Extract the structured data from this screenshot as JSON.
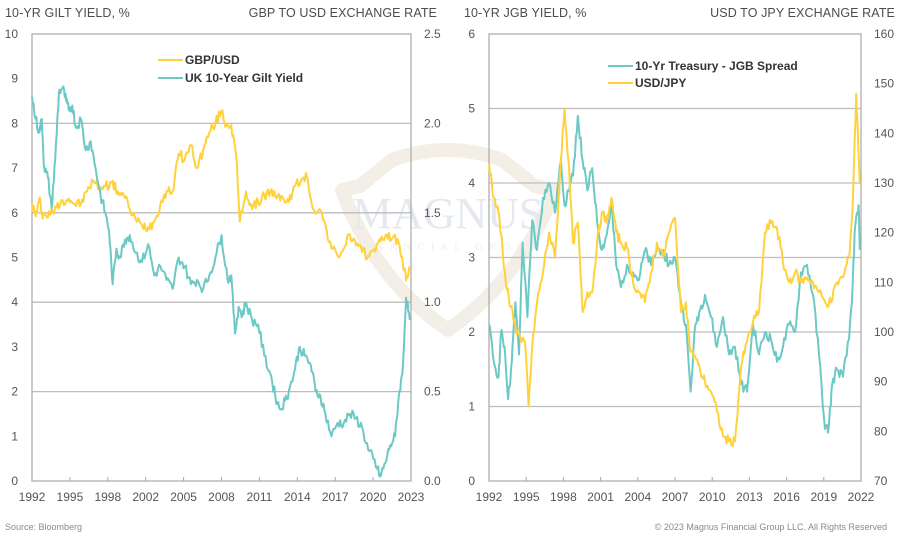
{
  "footer": {
    "source": "Source: Bloomberg",
    "copyright": "© 2023 Magnus Financial Group LLC. All Rights Reserved"
  },
  "watermark": {
    "title": "MAGNUS",
    "subtitle": "FINANCIAL GROUP"
  },
  "colors": {
    "teal": "#6cc9c6",
    "gold": "#ffd23c",
    "grid": "#bdbdbd",
    "axis": "#a8a8a8"
  },
  "chart_data": [
    {
      "type": "line",
      "title": "",
      "ylabel_left": "10-YR GILT YIELD, %",
      "ylabel_right": "GBP TO USD EXCHANGE RATE",
      "xlabel": "",
      "xlim": [
        1992,
        2023
      ],
      "ylim_left": [
        0,
        10
      ],
      "ylim_right": [
        0.0,
        2.5
      ],
      "x_ticks": [
        "1992",
        "1995",
        "1998",
        "2002",
        "2005",
        "2008",
        "2011",
        "2014",
        "2017",
        "2020",
        "2023"
      ],
      "y_ticks_left": [
        "0",
        "1",
        "2",
        "3",
        "4",
        "5",
        "6",
        "7",
        "8",
        "9",
        "10"
      ],
      "y_ticks_right": [
        "0.0",
        "0.5",
        "1.0",
        "1.5",
        "2.0",
        "2.5"
      ],
      "gridlines_left": [
        2,
        4,
        6,
        8
      ],
      "legend_position": "top-center",
      "series": [
        {
          "name": "GBP/USD",
          "axis": "right",
          "color": "#ffd23c",
          "x": [
            1992.0,
            1992.3,
            1992.6,
            1992.8,
            1993.0,
            1993.5,
            1994.0,
            1994.5,
            1995.0,
            1995.5,
            1996.0,
            1996.5,
            1997.0,
            1997.5,
            1998.0,
            1998.5,
            1999.0,
            1999.5,
            2000.0,
            2000.5,
            2001.0,
            2001.5,
            2002.0,
            2002.5,
            2003.0,
            2003.5,
            2004.0,
            2004.5,
            2005.0,
            2005.5,
            2006.0,
            2006.5,
            2007.0,
            2007.5,
            2007.9,
            2008.3,
            2008.7,
            2009.0,
            2009.5,
            2010.0,
            2010.5,
            2011.0,
            2011.5,
            2012.0,
            2012.5,
            2013.0,
            2013.5,
            2014.0,
            2014.5,
            2015.0,
            2015.5,
            2016.0,
            2016.5,
            2017.0,
            2017.5,
            2018.0,
            2018.5,
            2019.0,
            2019.5,
            2020.0,
            2020.5,
            2021.0,
            2021.5,
            2022.0,
            2022.3,
            2022.6,
            2022.9
          ],
          "y": [
            1.55,
            1.48,
            1.58,
            1.5,
            1.49,
            1.49,
            1.53,
            1.57,
            1.58,
            1.55,
            1.55,
            1.62,
            1.68,
            1.64,
            1.65,
            1.67,
            1.62,
            1.6,
            1.52,
            1.46,
            1.43,
            1.42,
            1.45,
            1.55,
            1.62,
            1.62,
            1.83,
            1.8,
            1.88,
            1.75,
            1.85,
            1.95,
            2.0,
            2.07,
            1.99,
            1.99,
            1.82,
            1.45,
            1.62,
            1.52,
            1.56,
            1.6,
            1.62,
            1.58,
            1.59,
            1.56,
            1.65,
            1.68,
            1.7,
            1.52,
            1.52,
            1.43,
            1.3,
            1.26,
            1.3,
            1.38,
            1.32,
            1.28,
            1.26,
            1.3,
            1.34,
            1.38,
            1.36,
            1.33,
            1.24,
            1.12,
            1.2
          ]
        },
        {
          "name": "UK 10-Year Gilt Yield",
          "axis": "left",
          "color": "#6cc9c6",
          "x": [
            1992.0,
            1992.3,
            1992.6,
            1992.8,
            1993.0,
            1993.3,
            1993.6,
            1993.9,
            1994.2,
            1994.5,
            1994.8,
            1995.0,
            1995.3,
            1995.6,
            1996.0,
            1996.4,
            1996.8,
            1997.2,
            1997.6,
            1998.0,
            1998.3,
            1998.6,
            1998.9,
            1999.2,
            1999.6,
            2000.0,
            2000.5,
            2001.0,
            2001.5,
            2002.0,
            2002.5,
            2003.0,
            2003.5,
            2004.0,
            2004.5,
            2005.0,
            2005.5,
            2006.0,
            2006.5,
            2007.0,
            2007.5,
            2008.0,
            2008.3,
            2008.6,
            2008.9,
            2009.2,
            2009.5,
            2010.0,
            2010.5,
            2011.0,
            2011.5,
            2011.9,
            2012.3,
            2012.7,
            2013.0,
            2013.5,
            2013.9,
            2014.3,
            2014.8,
            2015.2,
            2015.6,
            2016.0,
            2016.5,
            2017.0,
            2017.5,
            2018.0,
            2018.5,
            2019.0,
            2019.5,
            2019.9,
            2020.2,
            2020.5,
            2020.9,
            2021.3,
            2021.7,
            2022.0,
            2022.3,
            2022.6,
            2022.9
          ],
          "y": [
            8.6,
            8.1,
            7.8,
            8.1,
            7.0,
            6.8,
            6.1,
            7.2,
            8.7,
            8.8,
            8.5,
            8.3,
            8.4,
            7.9,
            8.1,
            7.4,
            7.6,
            7.0,
            6.4,
            6.0,
            5.6,
            4.4,
            5.2,
            5.0,
            5.4,
            5.5,
            5.1,
            4.9,
            5.3,
            4.6,
            4.8,
            4.5,
            4.3,
            5.0,
            4.8,
            4.4,
            4.5,
            4.3,
            4.6,
            5.0,
            5.5,
            4.5,
            4.6,
            3.3,
            3.9,
            3.7,
            4.0,
            3.6,
            3.5,
            2.8,
            2.4,
            1.9,
            1.6,
            1.8,
            2.0,
            2.5,
            3.0,
            2.8,
            2.6,
            2.0,
            1.9,
            1.5,
            1.0,
            1.3,
            1.3,
            1.5,
            1.4,
            1.2,
            0.7,
            0.5,
            0.3,
            0.1,
            0.4,
            0.8,
            1.0,
            1.9,
            2.4,
            4.1,
            3.6
          ]
        }
      ]
    },
    {
      "type": "line",
      "title": "",
      "ylabel_left": "10-YR JGB YIELD, %",
      "ylabel_right": "USD TO JPY EXCHANGE RATE",
      "xlabel": "",
      "xlim": [
        1992,
        2023
      ],
      "ylim_left": [
        0,
        6
      ],
      "ylim_right": [
        70,
        160
      ],
      "x_ticks": [
        "1992",
        "1995",
        "1998",
        "2001",
        "2004",
        "2007",
        "2010",
        "2013",
        "2016",
        "2019",
        "2022"
      ],
      "y_ticks_left": [
        "0",
        "1",
        "2",
        "3",
        "4",
        "5",
        "6"
      ],
      "y_ticks_right": [
        "70",
        "80",
        "90",
        "100",
        "110",
        "120",
        "130",
        "140",
        "150",
        "160"
      ],
      "gridlines_left": [
        1,
        2,
        3,
        4,
        5
      ],
      "legend_position": "top-center",
      "series": [
        {
          "name": "10-Yr Treasury - JGB Spread",
          "axis": "left",
          "color": "#6cc9c6",
          "x": [
            1992.0,
            1992.4,
            1992.8,
            1993.0,
            1993.3,
            1993.6,
            1993.9,
            1994.2,
            1994.5,
            1994.8,
            1995.2,
            1995.6,
            1996.0,
            1996.5,
            1997.0,
            1997.5,
            1998.0,
            1998.3,
            1998.6,
            1999.0,
            1999.4,
            1999.8,
            2000.2,
            2000.6,
            2001.0,
            2001.4,
            2001.8,
            2002.2,
            2002.6,
            2003.0,
            2003.5,
            2004.0,
            2004.5,
            2005.0,
            2005.5,
            2006.0,
            2006.5,
            2007.0,
            2007.5,
            2008.0,
            2008.4,
            2008.8,
            2009.2,
            2009.6,
            2010.0,
            2010.5,
            2011.0,
            2011.5,
            2012.0,
            2012.5,
            2013.0,
            2013.5,
            2014.0,
            2014.5,
            2015.0,
            2015.5,
            2016.0,
            2016.5,
            2017.0,
            2017.5,
            2018.0,
            2018.5,
            2019.0,
            2019.5,
            2020.0,
            2020.3,
            2020.6,
            2021.0,
            2021.5,
            2022.0,
            2022.3,
            2022.5,
            2022.8,
            2022.9
          ],
          "y": [
            2.1,
            1.6,
            1.4,
            2.0,
            1.8,
            1.1,
            1.6,
            2.4,
            1.7,
            3.2,
            2.2,
            3.5,
            3.1,
            3.8,
            4.0,
            3.6,
            4.3,
            3.7,
            3.9,
            4.1,
            4.9,
            4.3,
            3.9,
            4.2,
            3.5,
            3.1,
            3.3,
            3.7,
            2.9,
            2.6,
            2.9,
            2.8,
            2.7,
            3.1,
            2.9,
            3.1,
            3.1,
            2.9,
            3.0,
            2.4,
            2.1,
            1.2,
            2.1,
            2.3,
            2.5,
            2.2,
            1.8,
            2.2,
            1.7,
            1.8,
            1.3,
            1.2,
            2.1,
            1.7,
            2.0,
            1.9,
            1.6,
            1.8,
            2.1,
            2.0,
            2.8,
            2.9,
            2.5,
            1.7,
            0.7,
            0.7,
            1.3,
            1.5,
            1.4,
            1.9,
            2.6,
            3.4,
            3.7,
            3.1
          ]
        },
        {
          "name": "USD/JPY",
          "axis": "right",
          "color": "#ffd23c",
          "x": [
            1992.0,
            1992.4,
            1992.8,
            1993.0,
            1993.4,
            1993.8,
            1994.2,
            1994.6,
            1995.0,
            1995.3,
            1995.6,
            1996.0,
            1996.5,
            1997.0,
            1997.5,
            1998.0,
            1998.3,
            1998.6,
            1999.0,
            1999.4,
            1999.8,
            2000.2,
            2000.6,
            2001.0,
            2001.4,
            2001.8,
            2002.2,
            2002.6,
            2003.0,
            2003.5,
            2004.0,
            2004.5,
            2005.0,
            2005.5,
            2006.0,
            2006.5,
            2007.0,
            2007.5,
            2008.0,
            2008.4,
            2008.8,
            2009.2,
            2009.6,
            2010.0,
            2010.5,
            2011.0,
            2011.5,
            2012.0,
            2012.5,
            2013.0,
            2013.5,
            2014.0,
            2014.5,
            2015.0,
            2015.5,
            2016.0,
            2016.5,
            2017.0,
            2017.5,
            2018.0,
            2018.5,
            2019.0,
            2019.5,
            2020.0,
            2020.5,
            2021.0,
            2021.5,
            2022.0,
            2022.3,
            2022.6,
            2022.9
          ],
          "y": [
            134,
            127,
            124,
            120,
            110,
            105,
            101,
            99,
            98,
            85,
            97,
            106,
            112,
            120,
            115,
            135,
            145,
            135,
            118,
            122,
            104,
            108,
            108,
            118,
            124,
            122,
            127,
            120,
            118,
            117,
            110,
            108,
            106,
            112,
            118,
            115,
            120,
            123,
            104,
            106,
            96,
            95,
            92,
            90,
            88,
            84,
            79,
            78,
            78,
            93,
            98,
            102,
            104,
            120,
            122,
            121,
            114,
            110,
            112,
            110,
            111,
            110,
            108,
            106,
            106,
            110,
            111,
            115,
            125,
            148,
            130
          ]
        }
      ]
    }
  ]
}
